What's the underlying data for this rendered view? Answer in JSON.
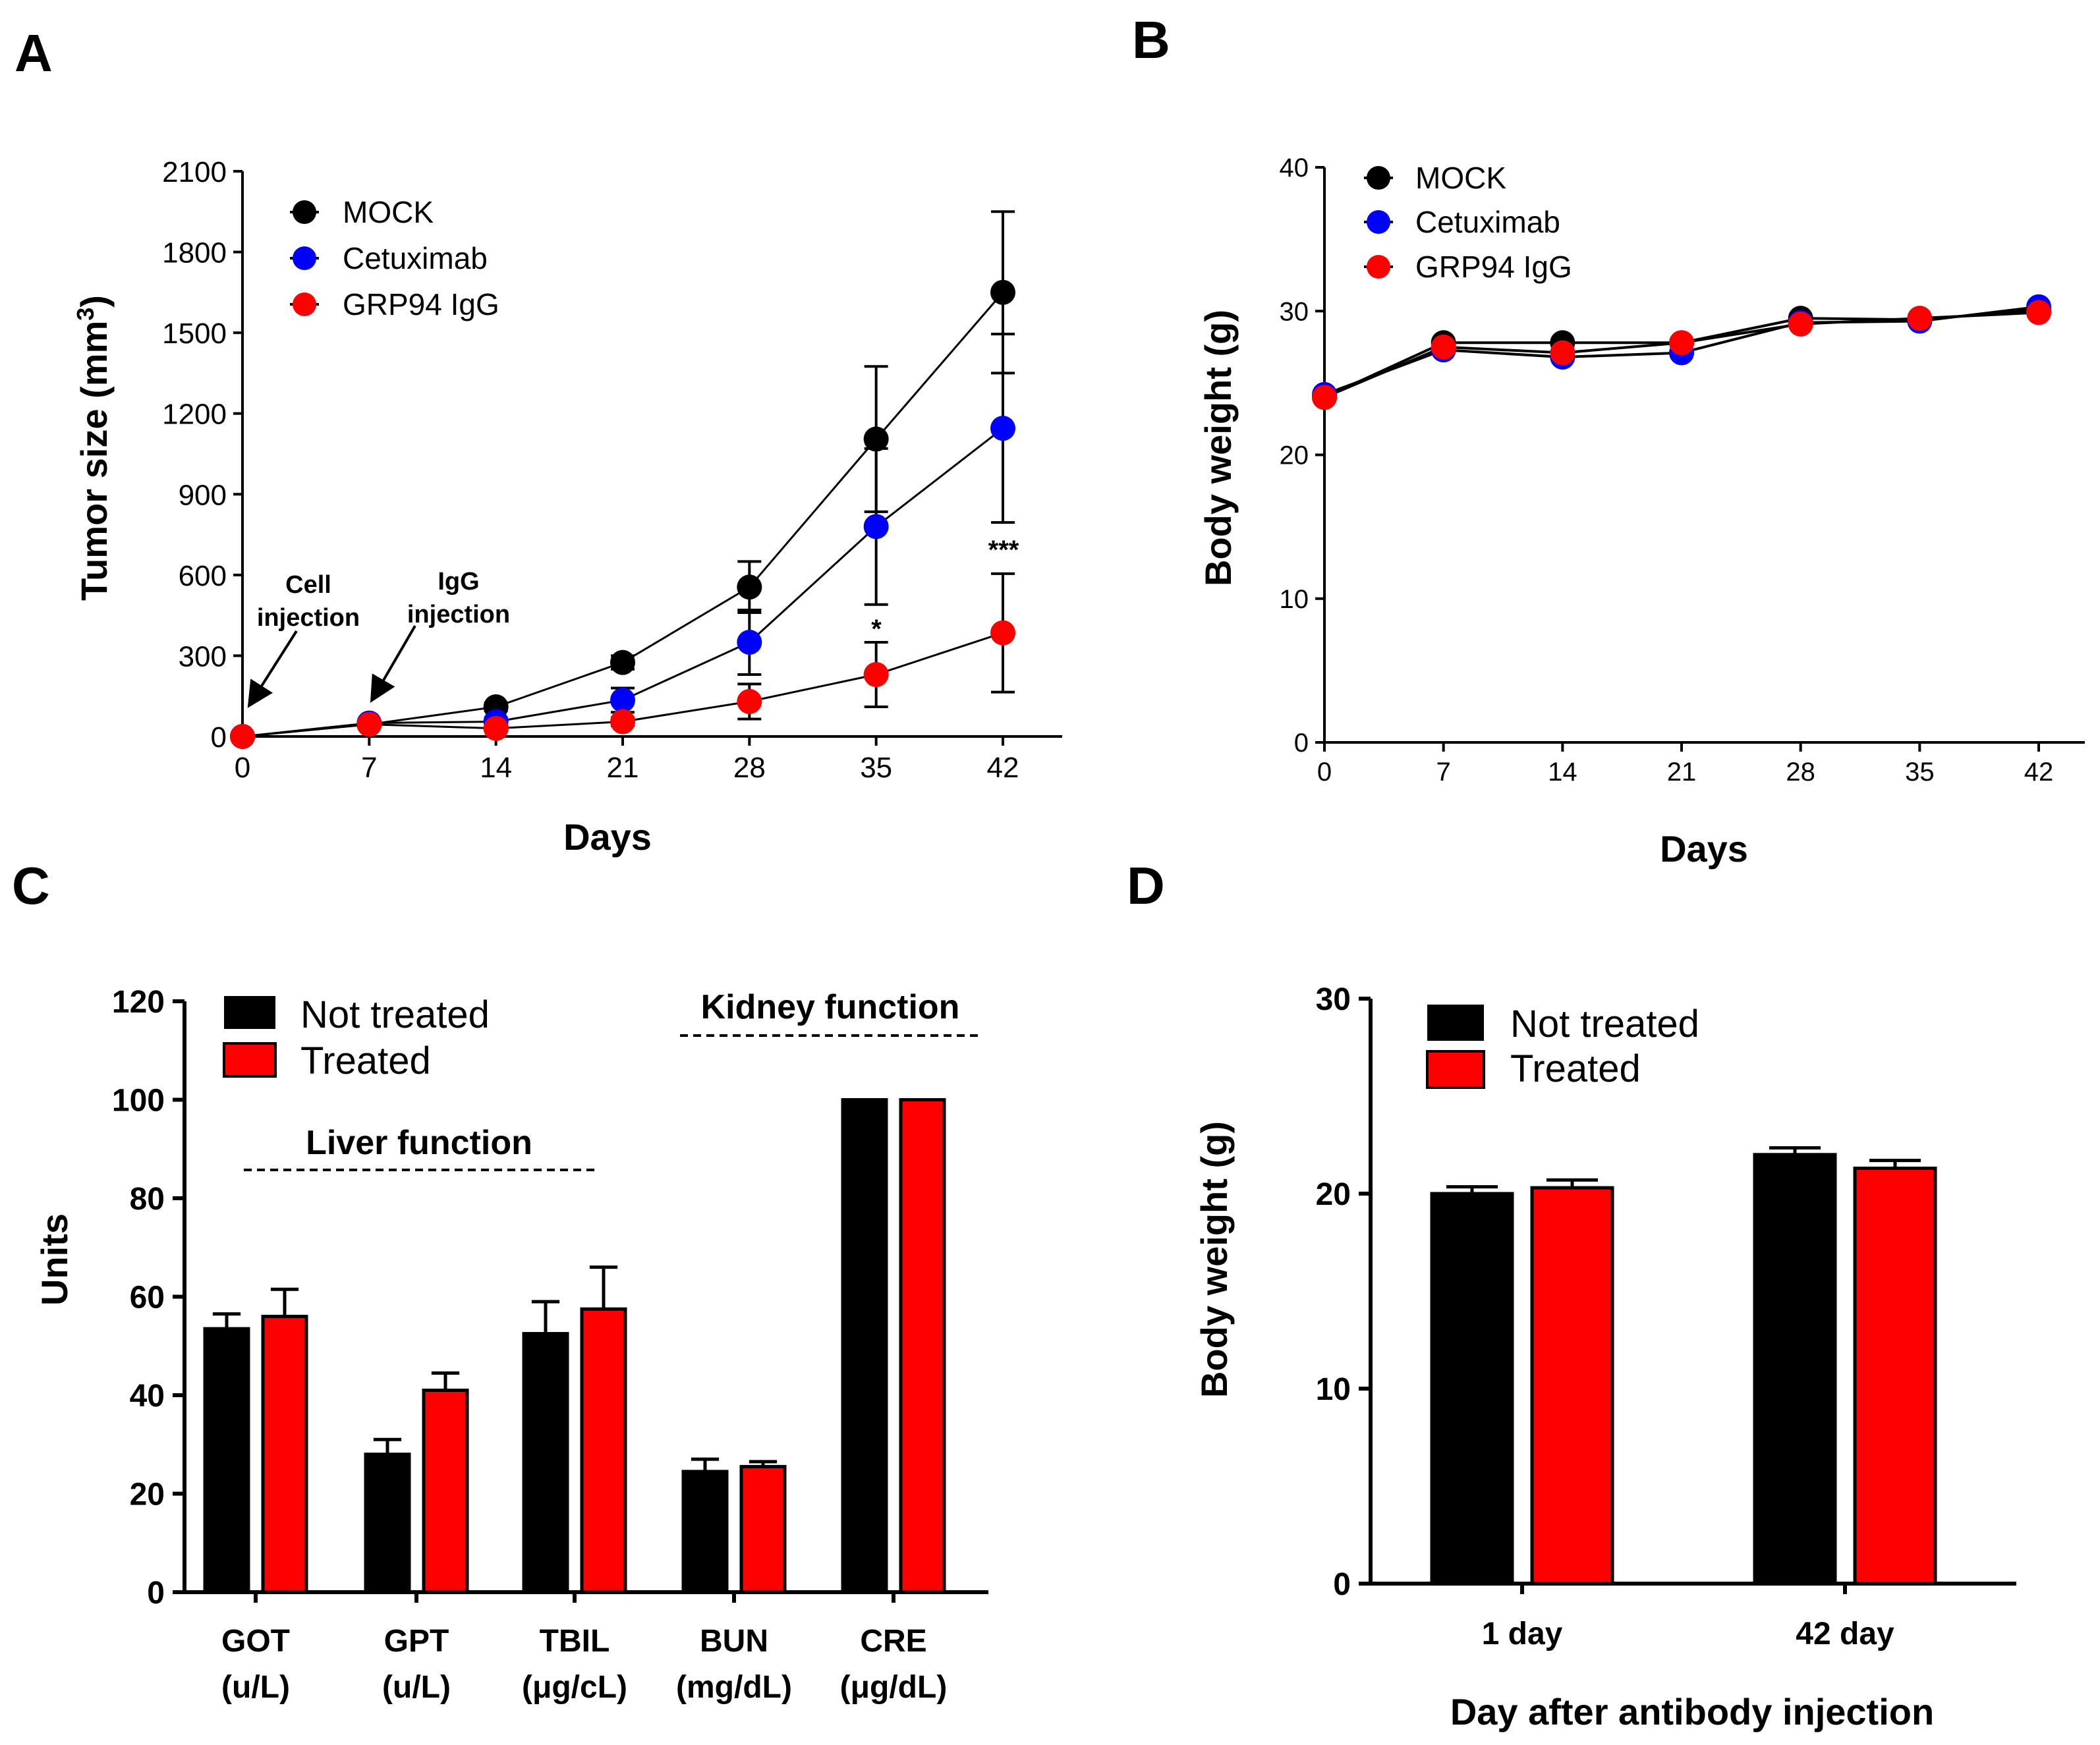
{
  "panels": {
    "a": "A",
    "b": "B",
    "c": "C",
    "d": "D"
  },
  "chart_data": [
    {
      "panel": "A",
      "type": "line",
      "xlabel": "Days",
      "ylabel_main": "Tumor size (mm",
      "ylabel_sup": "3",
      "ylabel_end": ")",
      "x": [
        0,
        7,
        14,
        21,
        28,
        35,
        42
      ],
      "xlim": [
        0,
        42
      ],
      "ylim": [
        0,
        2100
      ],
      "yticks": [
        0,
        300,
        600,
        900,
        1200,
        1500,
        1800,
        2100
      ],
      "legend_position": "top-left",
      "series": [
        {
          "name": "MOCK",
          "color": "#000000",
          "values": [
            0,
            45,
            110,
            275,
            555,
            1105,
            1650
          ],
          "err": [
            0,
            8,
            15,
            25,
            95,
            270,
            300
          ]
        },
        {
          "name": "Cetuximab",
          "color": "#0000ff",
          "values": [
            0,
            50,
            55,
            135,
            350,
            780,
            1145
          ],
          "err": [
            0,
            10,
            15,
            45,
            120,
            290,
            350
          ]
        },
        {
          "name": "GRP94 IgG",
          "color": "#ff0000",
          "values": [
            0,
            45,
            30,
            55,
            130,
            230,
            385
          ],
          "err": [
            0,
            10,
            10,
            15,
            65,
            120,
            220
          ]
        }
      ],
      "annotations": [
        {
          "text_line1": "Cell",
          "text_line2": "injection",
          "x": 0
        },
        {
          "text_line1": "IgG",
          "text_line2": "injection",
          "x": 7
        },
        {
          "text": "*",
          "x": 35
        },
        {
          "text": "***",
          "x": 42
        }
      ]
    },
    {
      "panel": "B",
      "type": "line",
      "xlabel": "Days",
      "ylabel": "Body weight  (g)",
      "x": [
        0,
        7,
        14,
        21,
        28,
        35,
        42
      ],
      "xlim": [
        0,
        42
      ],
      "ylim": [
        0,
        40
      ],
      "yticks": [
        0,
        10,
        20,
        30,
        40
      ],
      "legend_position": "top-left",
      "series": [
        {
          "name": "MOCK",
          "color": "#000000",
          "values": [
            24.0,
            27.8,
            27.8,
            27.8,
            29.5,
            29.4,
            30.1
          ]
        },
        {
          "name": "Cetuximab",
          "color": "#0000ff",
          "values": [
            24.2,
            27.3,
            26.8,
            27.1,
            29.2,
            29.3,
            30.3
          ]
        },
        {
          "name": "GRP94 IgG",
          "color": "#ff0000",
          "values": [
            24.0,
            27.5,
            27.1,
            27.8,
            29.1,
            29.5,
            29.9
          ]
        }
      ]
    },
    {
      "panel": "C",
      "type": "bar",
      "ylabel": "Units",
      "ylim": [
        0,
        120
      ],
      "yticks": [
        0,
        20,
        40,
        60,
        80,
        100,
        120
      ],
      "categories": [
        {
          "line1": "GOT",
          "line2": "(u/L)"
        },
        {
          "line1": "GPT",
          "line2": "(u/L)"
        },
        {
          "line1": "TBIL",
          "line2": "(μg/cL)"
        },
        {
          "line1": "BUN",
          "line2": "(mg/dL)"
        },
        {
          "line1": "CRE",
          "line2": "(μg/dL)"
        }
      ],
      "legend_position": "top-left",
      "series": [
        {
          "name": "Not treated",
          "color": "#000000",
          "values": [
            53.5,
            28,
            52.5,
            24.5,
            100
          ],
          "err": [
            3,
            3,
            6.5,
            2.5,
            0
          ]
        },
        {
          "name": "Treated",
          "color": "#ff0000",
          "values": [
            56,
            41,
            57.5,
            25.5,
            100
          ],
          "err": [
            5.5,
            3.5,
            8.5,
            1,
            0
          ]
        }
      ],
      "group_labels": {
        "liver": "Liver function",
        "kidney": "Kidney function"
      }
    },
    {
      "panel": "D",
      "type": "bar",
      "xlabel": "Day after antibody injection",
      "ylabel": "Body weight  (g)",
      "ylim": [
        0,
        30
      ],
      "yticks": [
        0,
        10,
        20,
        30
      ],
      "categories": [
        "1 day",
        "42 day"
      ],
      "legend_position": "top-left",
      "series": [
        {
          "name": "Not treated",
          "color": "#000000",
          "values": [
            20,
            22
          ],
          "err": [
            0.35,
            0.35
          ]
        },
        {
          "name": "Treated",
          "color": "#ff0000",
          "values": [
            20.3,
            21.3
          ],
          "err": [
            0.4,
            0.4
          ]
        }
      ]
    }
  ]
}
